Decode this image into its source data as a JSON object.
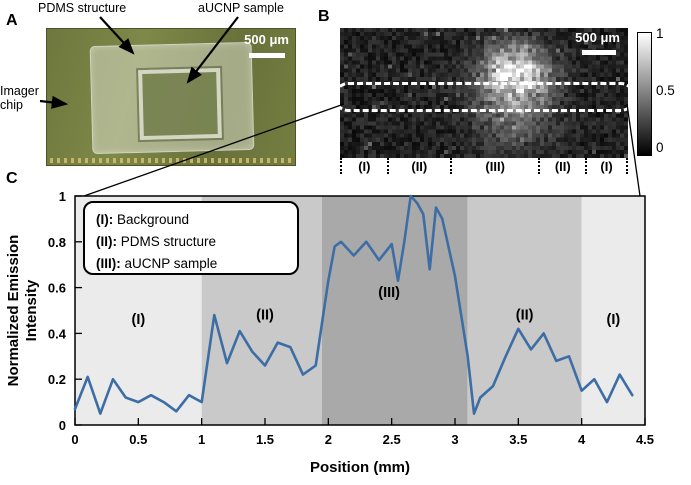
{
  "figure": {
    "panel_a": {
      "label": "A",
      "pdms_label": "PDMS structure",
      "aucnp_label": "aUCNP sample",
      "imager_label": "Imager chip",
      "scale_bar": "500 μm"
    },
    "panel_b": {
      "label": "B",
      "scale_bar": "500 μm",
      "colorbar_ticks": [
        "1",
        "0.5",
        "0"
      ],
      "region_labels": [
        "(I)",
        "(II)",
        "(III)",
        "(II)",
        "(I)"
      ]
    },
    "panel_c": {
      "label": "C"
    }
  },
  "chart_data": {
    "type": "line",
    "title": "",
    "xlabel": "Position (mm)",
    "ylabel": "Normalized Emission Intensity",
    "ylabel_lines": [
      "Normalized Emission",
      "Intensity"
    ],
    "xlim": [
      0,
      4.5
    ],
    "ylim": [
      0,
      1
    ],
    "xticks": [
      0,
      0.5,
      1,
      1.5,
      2,
      2.5,
      3,
      3.5,
      4,
      4.5
    ],
    "yticks": [
      0,
      0.2,
      0.4,
      0.6,
      0.8,
      1
    ],
    "grid": false,
    "line_color": "#3c6ea5",
    "legend_position": "top-left",
    "legend": [
      {
        "marker": "(I):",
        "text": "Background"
      },
      {
        "marker": "(II):",
        "text": "PDMS structure"
      },
      {
        "marker": "(III):",
        "text": "aUCNP sample"
      }
    ],
    "regions": [
      {
        "label": "(I)",
        "start": 0,
        "end": 1.0,
        "color": "#ebebeb",
        "label_x": 0.5,
        "label_y": 0.44
      },
      {
        "label": "(II)",
        "start": 1.0,
        "end": 1.95,
        "color": "#c9c9c9",
        "label_x": 1.5,
        "label_y": 0.46
      },
      {
        "label": "(III)",
        "start": 1.95,
        "end": 3.1,
        "color": "#a9a9a9",
        "label_x": 2.48,
        "label_y": 0.56
      },
      {
        "label": "(II)",
        "start": 3.1,
        "end": 4.0,
        "color": "#c9c9c9",
        "label_x": 3.55,
        "label_y": 0.46
      },
      {
        "label": "(I)",
        "start": 4.0,
        "end": 4.5,
        "color": "#ebebeb",
        "label_x": 4.25,
        "label_y": 0.44
      }
    ],
    "series": [
      {
        "name": "emission",
        "x": [
          0,
          0.1,
          0.2,
          0.3,
          0.4,
          0.5,
          0.6,
          0.7,
          0.8,
          0.9,
          1.0,
          1.1,
          1.2,
          1.3,
          1.4,
          1.5,
          1.6,
          1.7,
          1.8,
          1.9,
          2.0,
          2.05,
          2.1,
          2.2,
          2.3,
          2.4,
          2.5,
          2.55,
          2.6,
          2.65,
          2.7,
          2.75,
          2.8,
          2.85,
          2.9,
          3.0,
          3.1,
          3.15,
          3.2,
          3.3,
          3.4,
          3.5,
          3.6,
          3.7,
          3.8,
          3.9,
          4.0,
          4.1,
          4.2,
          4.3,
          4.4
        ],
        "y": [
          0.07,
          0.21,
          0.05,
          0.2,
          0.12,
          0.1,
          0.13,
          0.1,
          0.06,
          0.13,
          0.1,
          0.48,
          0.27,
          0.41,
          0.32,
          0.26,
          0.36,
          0.34,
          0.22,
          0.26,
          0.63,
          0.78,
          0.8,
          0.74,
          0.8,
          0.72,
          0.79,
          0.63,
          0.8,
          1.0,
          0.97,
          0.92,
          0.68,
          0.95,
          0.9,
          0.65,
          0.3,
          0.05,
          0.12,
          0.17,
          0.3,
          0.42,
          0.33,
          0.4,
          0.28,
          0.3,
          0.15,
          0.2,
          0.1,
          0.22,
          0.13
        ]
      }
    ]
  }
}
